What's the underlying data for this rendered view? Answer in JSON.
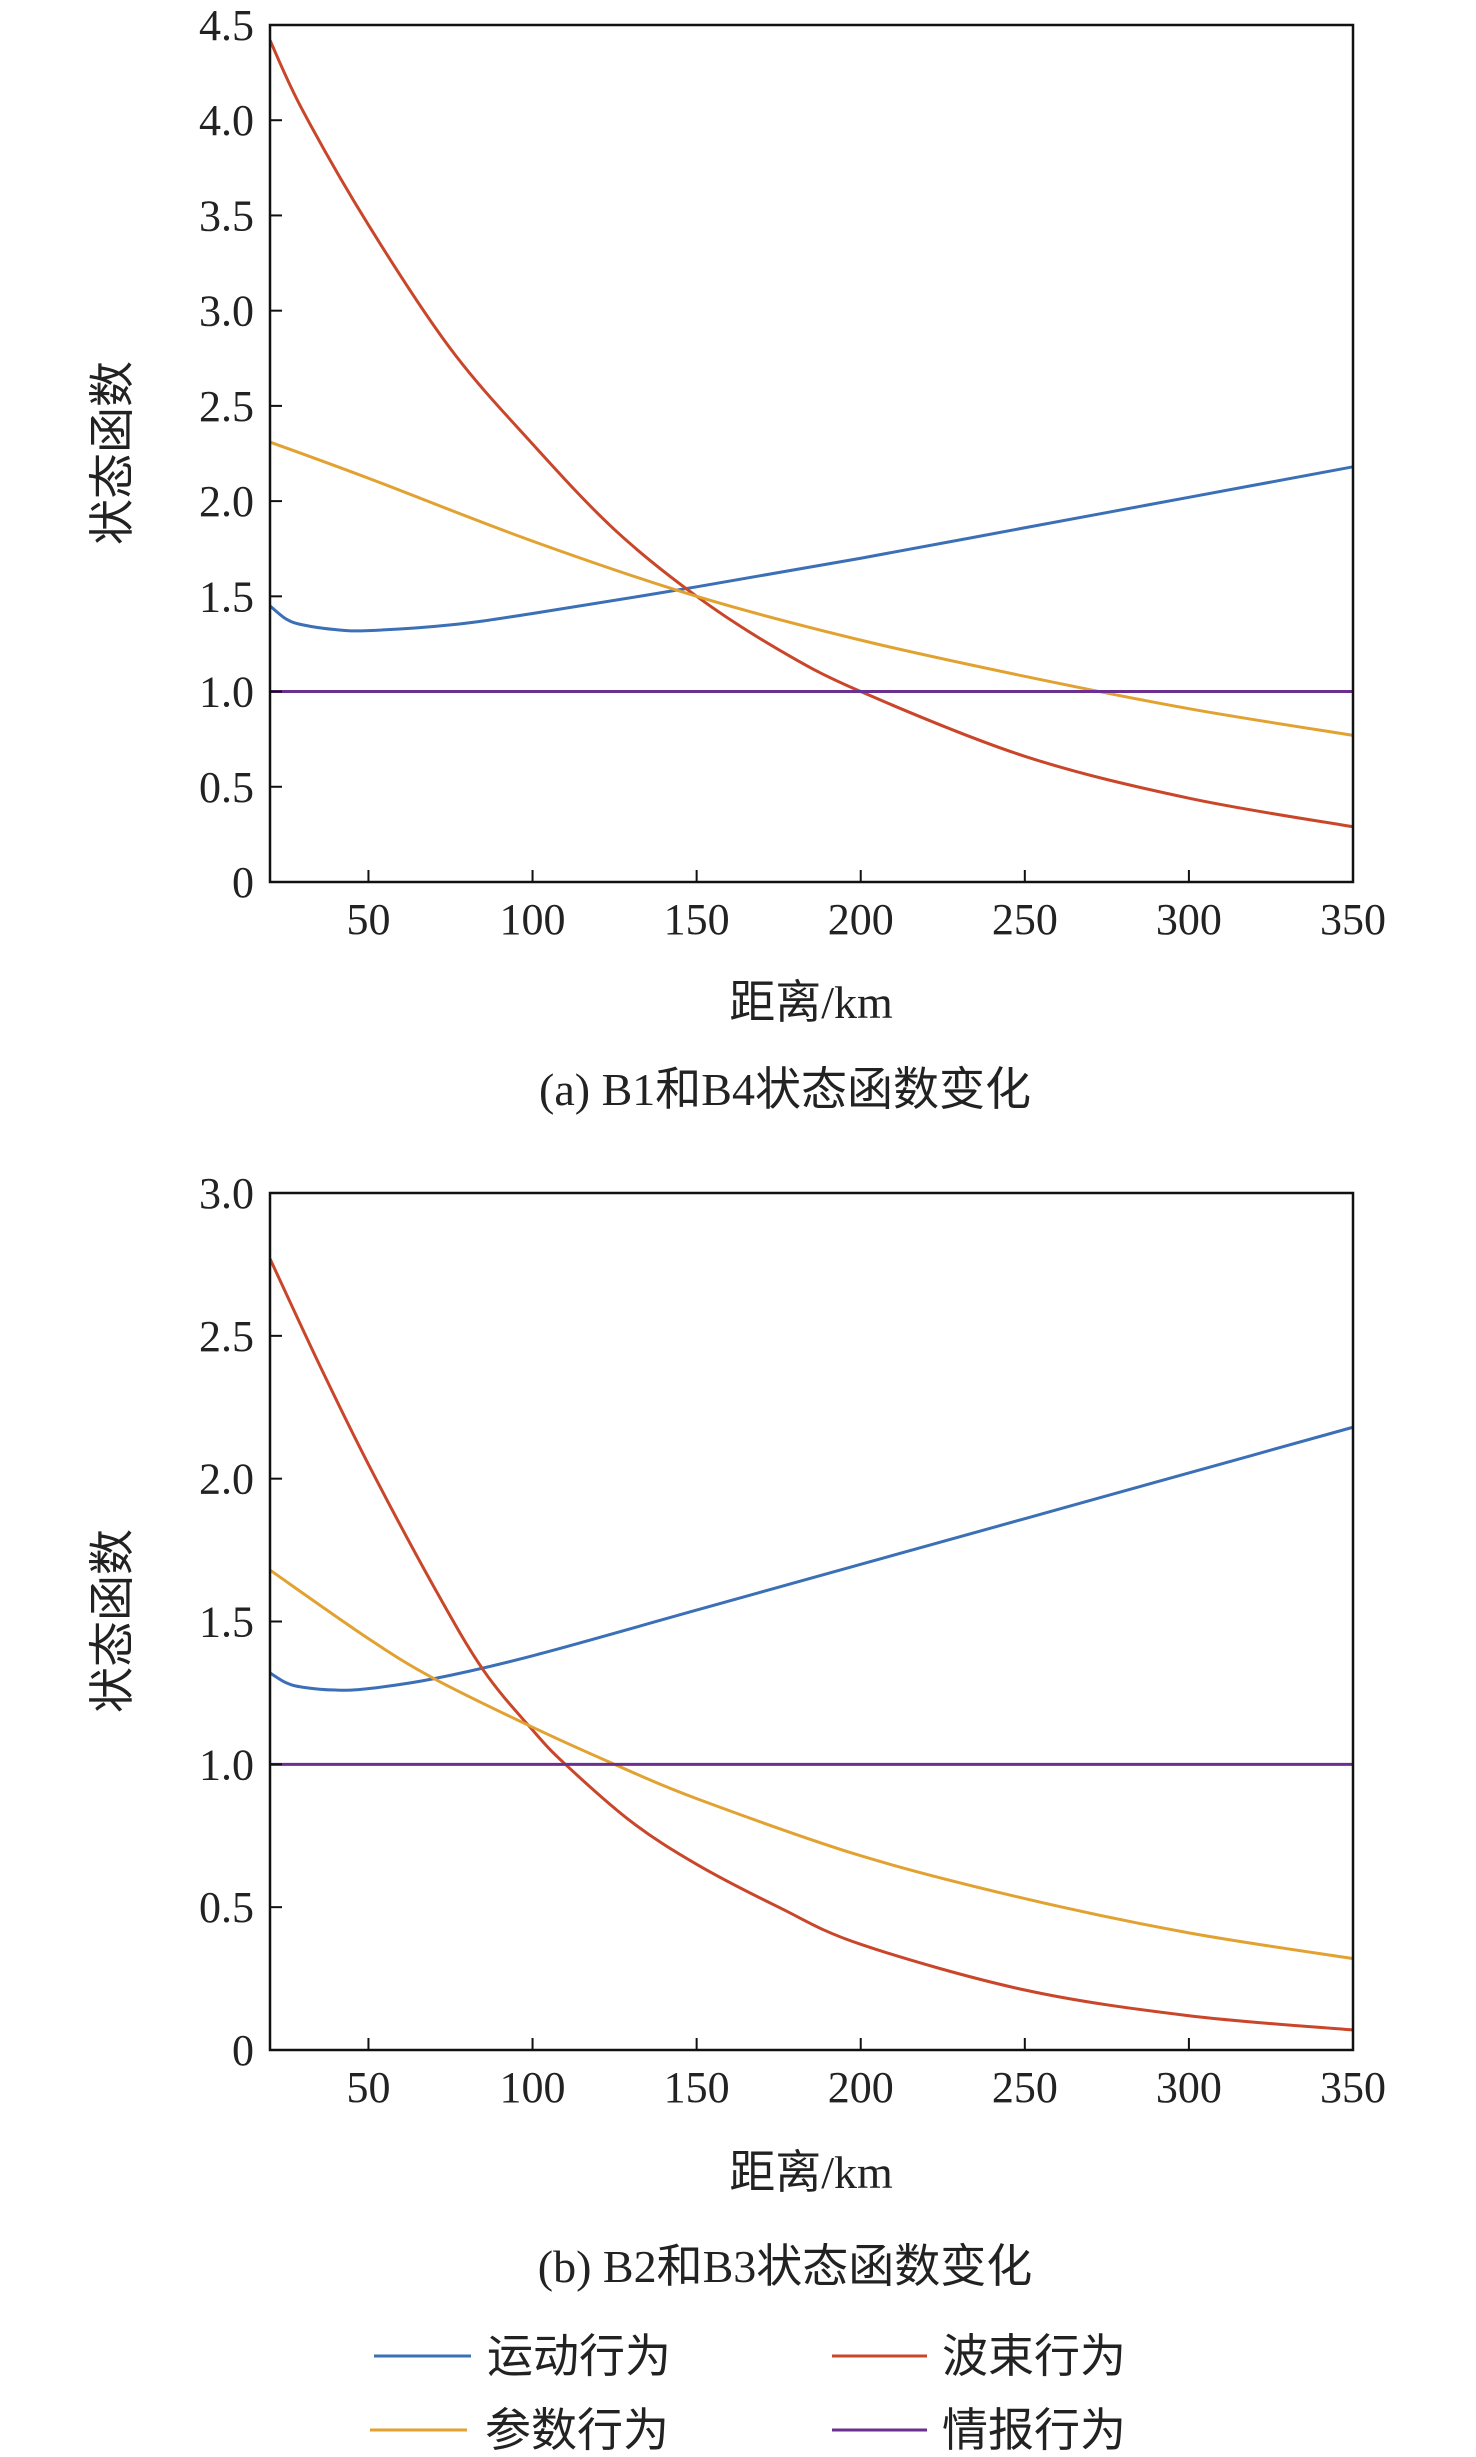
{
  "colors": {
    "motion": "#3b6fb6",
    "beam": "#c9462a",
    "param": "#e1a231",
    "intel": "#6b2f90"
  },
  "legend": [
    {
      "key": "motion",
      "label": "运动行为"
    },
    {
      "key": "beam",
      "label": "波束行为"
    },
    {
      "key": "param",
      "label": "参数行为"
    },
    {
      "key": "intel",
      "label": "情报行为"
    }
  ],
  "chart_data": [
    {
      "type": "line",
      "title": "(a) B1和B4状态函数变化",
      "xlabel": "距离/km",
      "ylabel": "状态函数",
      "xlim": [
        20,
        350
      ],
      "ylim": [
        0,
        4.5
      ],
      "xticks": [
        50,
        100,
        150,
        200,
        250,
        300,
        350
      ],
      "yticks": [
        0,
        0.5,
        1.0,
        1.5,
        2.0,
        2.5,
        3.0,
        3.5,
        4.0,
        4.5
      ],
      "ytick_labels": [
        "0",
        "0.5",
        "1.0",
        "1.5",
        "2.0",
        "2.5",
        "3.0",
        "3.5",
        "4.0",
        "4.5"
      ],
      "grid": false,
      "series": [
        {
          "key": "motion",
          "name": "运动行为",
          "x": [
            20,
            25,
            30,
            40,
            50,
            75,
            100,
            150,
            200,
            250,
            300,
            350
          ],
          "y": [
            1.45,
            1.38,
            1.35,
            1.325,
            1.32,
            1.35,
            1.41,
            1.55,
            1.7,
            1.86,
            2.02,
            2.18
          ]
        },
        {
          "key": "beam",
          "name": "波束行为",
          "x": [
            20,
            30,
            50,
            75,
            100,
            125,
            150,
            175,
            200,
            250,
            300,
            350
          ],
          "y": [
            4.42,
            4.05,
            3.45,
            2.8,
            2.3,
            1.85,
            1.5,
            1.22,
            1.0,
            0.66,
            0.44,
            0.29
          ]
        },
        {
          "key": "param",
          "name": "参数行为",
          "x": [
            20,
            50,
            100,
            150,
            200,
            250,
            300,
            350
          ],
          "y": [
            2.31,
            2.12,
            1.79,
            1.5,
            1.27,
            1.08,
            0.91,
            0.77
          ]
        },
        {
          "key": "intel",
          "name": "情报行为",
          "x": [
            20,
            350
          ],
          "y": [
            1.0,
            1.0
          ]
        }
      ]
    },
    {
      "type": "line",
      "title": "(b) B2和B3状态函数变化",
      "xlabel": "距离/km",
      "ylabel": "状态函数",
      "xlim": [
        20,
        350
      ],
      "ylim": [
        0,
        3.0
      ],
      "xticks": [
        50,
        100,
        150,
        200,
        250,
        300,
        350
      ],
      "yticks": [
        0,
        0.5,
        1.0,
        1.5,
        2.0,
        2.5,
        3.0
      ],
      "ytick_labels": [
        "0",
        "0.5",
        "1.0",
        "1.5",
        "2.0",
        "2.5",
        "3.0"
      ],
      "grid": false,
      "series": [
        {
          "key": "motion",
          "name": "运动行为",
          "x": [
            20,
            25,
            30,
            40,
            50,
            70,
            100,
            150,
            200,
            250,
            300,
            350
          ],
          "y": [
            1.32,
            1.285,
            1.27,
            1.26,
            1.265,
            1.3,
            1.38,
            1.54,
            1.7,
            1.86,
            2.02,
            2.18
          ]
        },
        {
          "key": "beam",
          "name": "波束行为",
          "x": [
            20,
            35,
            50,
            70,
            85,
            100,
            110,
            130,
            150,
            175,
            200,
            250,
            300,
            350
          ],
          "y": [
            2.77,
            2.4,
            2.05,
            1.62,
            1.33,
            1.12,
            1.0,
            0.8,
            0.65,
            0.5,
            0.37,
            0.21,
            0.12,
            0.07
          ]
        },
        {
          "key": "param",
          "name": "参数行为",
          "x": [
            20,
            50,
            70,
            100,
            125,
            150,
            200,
            250,
            300,
            350
          ],
          "y": [
            1.68,
            1.44,
            1.3,
            1.13,
            1.0,
            0.88,
            0.68,
            0.53,
            0.41,
            0.32
          ]
        },
        {
          "key": "intel",
          "name": "情报行为",
          "x": [
            20,
            350
          ],
          "y": [
            1.0,
            1.0
          ]
        }
      ]
    }
  ]
}
